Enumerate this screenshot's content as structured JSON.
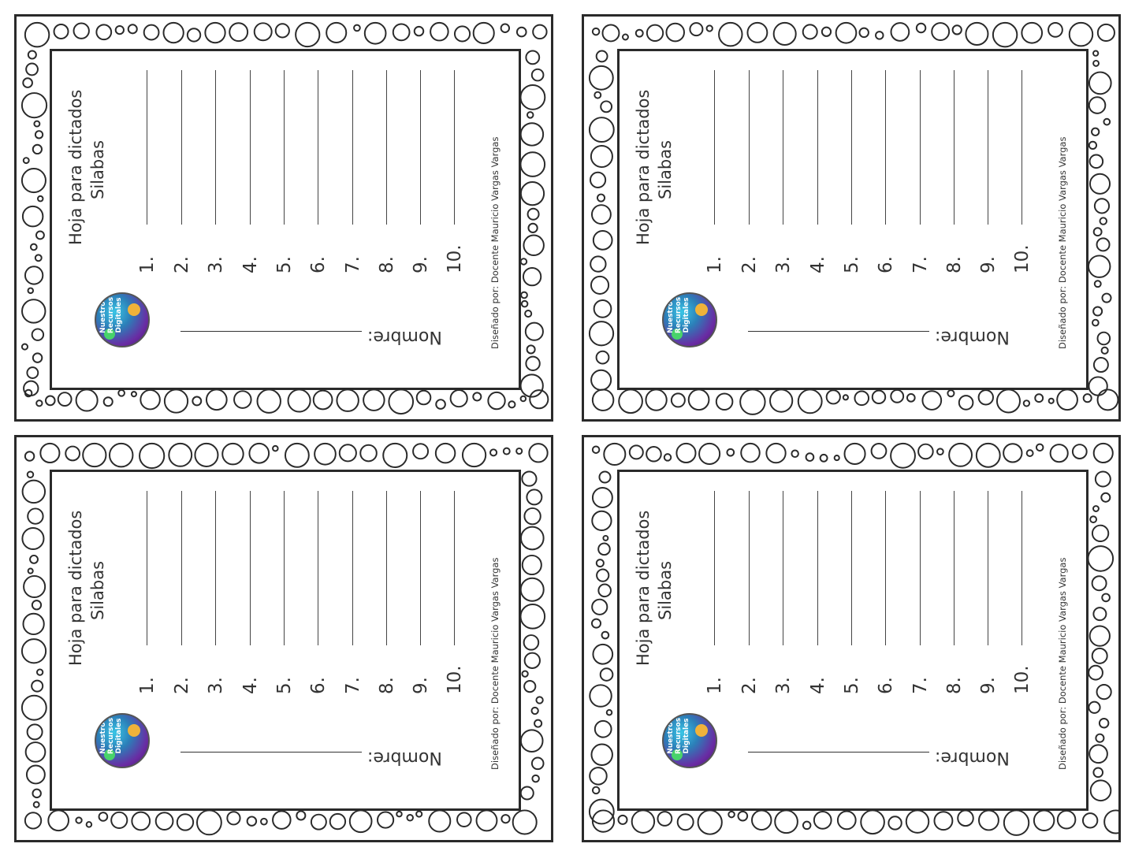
{
  "cards": [
    {
      "title": "Hoja para dictados",
      "subtitle": "Silabas",
      "numbers": [
        "1.",
        "2.",
        "3.",
        "4.",
        "5.",
        "6.",
        "7.",
        "8.",
        "9.",
        "10."
      ],
      "name_label": "Nombre:",
      "credit": "Diseñado por: Docente Mauricio Vargas Vargas",
      "logo_text": "Nuestros Recursos Digitales",
      "logo_icon": "logo-badge-icon"
    },
    {
      "title": "Hoja para dictados",
      "subtitle": "Silabas",
      "numbers": [
        "1.",
        "2.",
        "3.",
        "4.",
        "5.",
        "6.",
        "7.",
        "8.",
        "9.",
        "10."
      ],
      "name_label": "Nombre:",
      "credit": "Diseñado por: Docente Mauricio Vargas Vargas",
      "logo_text": "Nuestros Recursos Digitales",
      "logo_icon": "logo-badge-icon"
    },
    {
      "title": "Hoja para dictados",
      "subtitle": "Silabas",
      "numbers": [
        "1.",
        "2.",
        "3.",
        "4.",
        "5.",
        "6.",
        "7.",
        "8.",
        "9.",
        "10."
      ],
      "name_label": "Nombre:",
      "credit": "Diseñado por: Docente Mauricio Vargas Vargas",
      "logo_text": "Nuestros Recursos Digitales",
      "logo_icon": "logo-badge-icon"
    },
    {
      "title": "Hoja para dictados",
      "subtitle": "Silabas",
      "numbers": [
        "1.",
        "2.",
        "3.",
        "4.",
        "5.",
        "6.",
        "7.",
        "8.",
        "9.",
        "10."
      ],
      "name_label": "Nombre:",
      "credit": "Diseñado por: Docente Mauricio Vargas Vargas",
      "logo_text": "Nuestros Recursos Digitales",
      "logo_icon": "logo-badge-icon"
    }
  ],
  "colors": {
    "border": "#2a2a2a",
    "paper": "#ffffff",
    "text": "#333333"
  }
}
